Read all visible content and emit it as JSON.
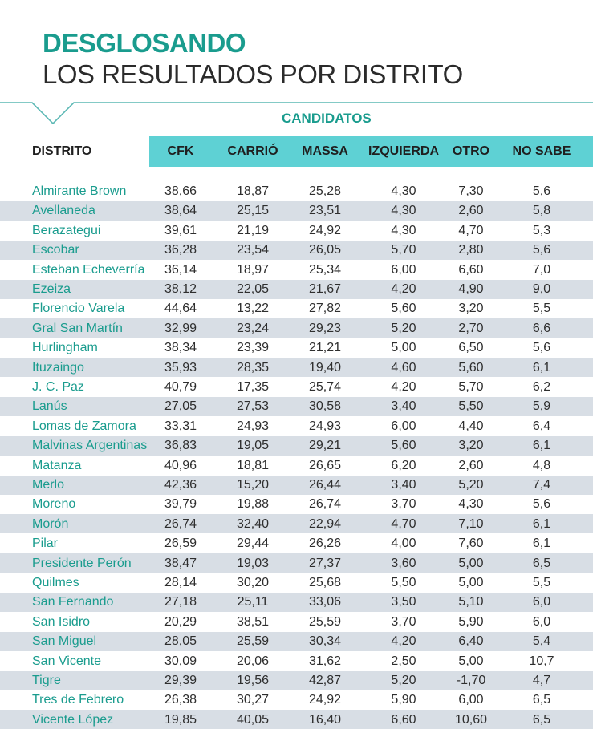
{
  "header": {
    "title_bold": "DESGLOSANDO",
    "title_sub": "LOS RESULTADOS POR DISTRITO",
    "group_label": "CANDIDATOS"
  },
  "columns": [
    "DISTRITO",
    "CFK",
    "CARRIÓ",
    "MASSA",
    "IZQUIERDA",
    "OTRO",
    "NO SABE"
  ],
  "rows": [
    [
      "Almirante Brown",
      "38,66",
      "18,87",
      "25,28",
      "4,30",
      "7,30",
      "5,6"
    ],
    [
      "Avellaneda",
      "38,64",
      "25,15",
      "23,51",
      "4,30",
      "2,60",
      "5,8"
    ],
    [
      "Berazategui",
      "39,61",
      "21,19",
      "24,92",
      "4,30",
      "4,70",
      "5,3"
    ],
    [
      "Escobar",
      "36,28",
      "23,54",
      "26,05",
      "5,70",
      "2,80",
      "5,6"
    ],
    [
      "Esteban Echeverría",
      "36,14",
      "18,97",
      "25,34",
      "6,00",
      "6,60",
      "7,0"
    ],
    [
      "Ezeiza",
      "38,12",
      "22,05",
      "21,67",
      "4,20",
      "4,90",
      "9,0"
    ],
    [
      "Florencio Varela",
      "44,64",
      "13,22",
      "27,82",
      "5,60",
      "3,20",
      "5,5"
    ],
    [
      "Gral San Martín",
      "32,99",
      "23,24",
      "29,23",
      "5,20",
      "2,70",
      "6,6"
    ],
    [
      "Hurlingham",
      "38,34",
      "23,39",
      "21,21",
      "5,00",
      "6,50",
      "5,6"
    ],
    [
      "Ituzaingo",
      "35,93",
      "28,35",
      "19,40",
      "4,60",
      "5,60",
      "6,1"
    ],
    [
      "J. C. Paz",
      "40,79",
      "17,35",
      "25,74",
      "4,20",
      "5,70",
      "6,2"
    ],
    [
      "Lanús",
      "27,05",
      "27,53",
      "30,58",
      "3,40",
      "5,50",
      "5,9"
    ],
    [
      "Lomas de Zamora",
      "33,31",
      "24,93",
      "24,93",
      "6,00",
      "4,40",
      "6,4"
    ],
    [
      "Malvinas Argentinas",
      "36,83",
      "19,05",
      "29,21",
      "5,60",
      "3,20",
      "6,1"
    ],
    [
      "Matanza",
      "40,96",
      "18,81",
      "26,65",
      "6,20",
      "2,60",
      "4,8"
    ],
    [
      "Merlo",
      "42,36",
      "15,20",
      "26,44",
      "3,40",
      "5,20",
      "7,4"
    ],
    [
      "Moreno",
      "39,79",
      "19,88",
      "26,74",
      "3,70",
      "4,30",
      "5,6"
    ],
    [
      "Morón",
      "26,74",
      "32,40",
      "22,94",
      "4,70",
      "7,10",
      "6,1"
    ],
    [
      "Pilar",
      "26,59",
      "29,44",
      "26,26",
      "4,00",
      "7,60",
      "6,1"
    ],
    [
      "Presidente Perón",
      "38,47",
      "19,03",
      "27,37",
      "3,60",
      "5,00",
      "6,5"
    ],
    [
      "Quilmes",
      "28,14",
      "30,20",
      "25,68",
      "5,50",
      "5,00",
      "5,5"
    ],
    [
      "San Fernando",
      "27,18",
      "25,11",
      "33,06",
      "3,50",
      "5,10",
      "6,0"
    ],
    [
      "San Isidro",
      "20,29",
      "38,51",
      "25,59",
      "3,70",
      "5,90",
      "6,0"
    ],
    [
      "San Miguel",
      "28,05",
      "25,59",
      "30,34",
      "4,20",
      "6,40",
      "5,4"
    ],
    [
      "San Vicente",
      "30,09",
      "20,06",
      "31,62",
      "2,50",
      "5,00",
      "10,7"
    ],
    [
      "Tigre",
      "29,39",
      "19,56",
      "42,87",
      "5,20",
      "-1,70",
      "4,7"
    ],
    [
      "Tres de Febrero",
      "26,38",
      "30,27",
      "24,92",
      "5,90",
      "6,00",
      "6,5"
    ],
    [
      "Vicente López",
      "19,85",
      "40,05",
      "16,40",
      "6,60",
      "10,60",
      "6,5"
    ]
  ],
  "colors": {
    "accent": "#1a9c8e",
    "header_band": "#5ed1d4",
    "stripe": "#d8dee5",
    "text": "#2e2e2e"
  }
}
